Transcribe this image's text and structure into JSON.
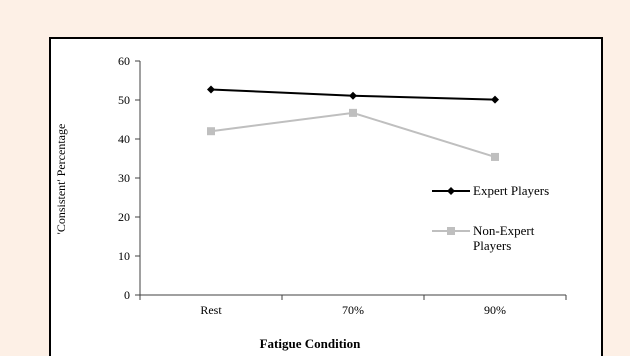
{
  "chart_data": {
    "type": "line",
    "categories": [
      "Rest",
      "70%",
      "90%"
    ],
    "series": [
      {
        "name": "Expert Players",
        "values": [
          52.7,
          51.1,
          50.1
        ],
        "color": "#000000",
        "marker": "diamond"
      },
      {
        "name": "Non-Expert Players",
        "values": [
          42.0,
          46.7,
          35.4
        ],
        "color": "#bfbfbf",
        "marker": "square"
      }
    ],
    "title": "",
    "xlabel": "Fatigue Condition",
    "ylabel": "'Consistent' Percentage",
    "ylim": [
      0,
      60
    ],
    "yticks": [
      0,
      10,
      20,
      30,
      40,
      50,
      60
    ],
    "grid": false,
    "legend_position": "right"
  },
  "legend": {
    "expert_label": "Expert Players",
    "nonexpert_line1": "Non-Expert",
    "nonexpert_line2": "Players"
  },
  "colors": {
    "background": "#fdf0e6",
    "plot_area": "#ffffff",
    "frame": "#000000",
    "axis": "#404040"
  }
}
